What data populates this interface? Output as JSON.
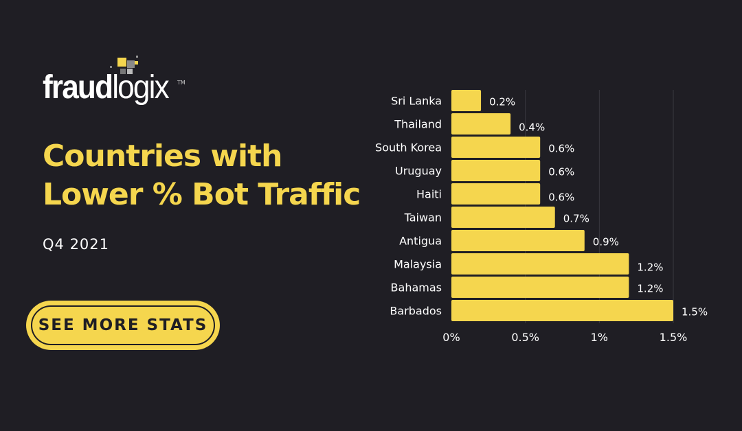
{
  "logo": {
    "text_bold": "fraud",
    "text_light": "logix",
    "tm": "TM"
  },
  "header": {
    "title_line1": "Countries with",
    "title_line2": "Lower % Bot Traffic",
    "subtitle": "Q4 2021"
  },
  "cta": {
    "label": "SEE MORE STATS"
  },
  "colors": {
    "background": "#1f1e24",
    "accent": "#f5d64e",
    "text": "#ffffff"
  },
  "chart_data": {
    "type": "bar",
    "orientation": "horizontal",
    "categories": [
      "Sri Lanka",
      "Thailand",
      "South Korea",
      "Uruguay",
      "Haiti",
      "Taiwan",
      "Antigua",
      "Malaysia",
      "Bahamas",
      "Barbados"
    ],
    "values": [
      0.2,
      0.4,
      0.6,
      0.6,
      0.6,
      0.7,
      0.9,
      1.2,
      1.2,
      1.5
    ],
    "data_labels": [
      "0.2%",
      "0.4%",
      "0.6%",
      "0.6%",
      "0.6%",
      "0.7%",
      "0.9%",
      "1.2%",
      "1.2%",
      "1.5%"
    ],
    "xlim": [
      0,
      1.5
    ],
    "xticks": [
      0,
      0.5,
      1,
      1.5
    ],
    "xtick_labels": [
      "0%",
      "0.5%",
      "1%",
      "1.5%"
    ],
    "grid": "vertical",
    "bar_color": "#f5d64e"
  }
}
